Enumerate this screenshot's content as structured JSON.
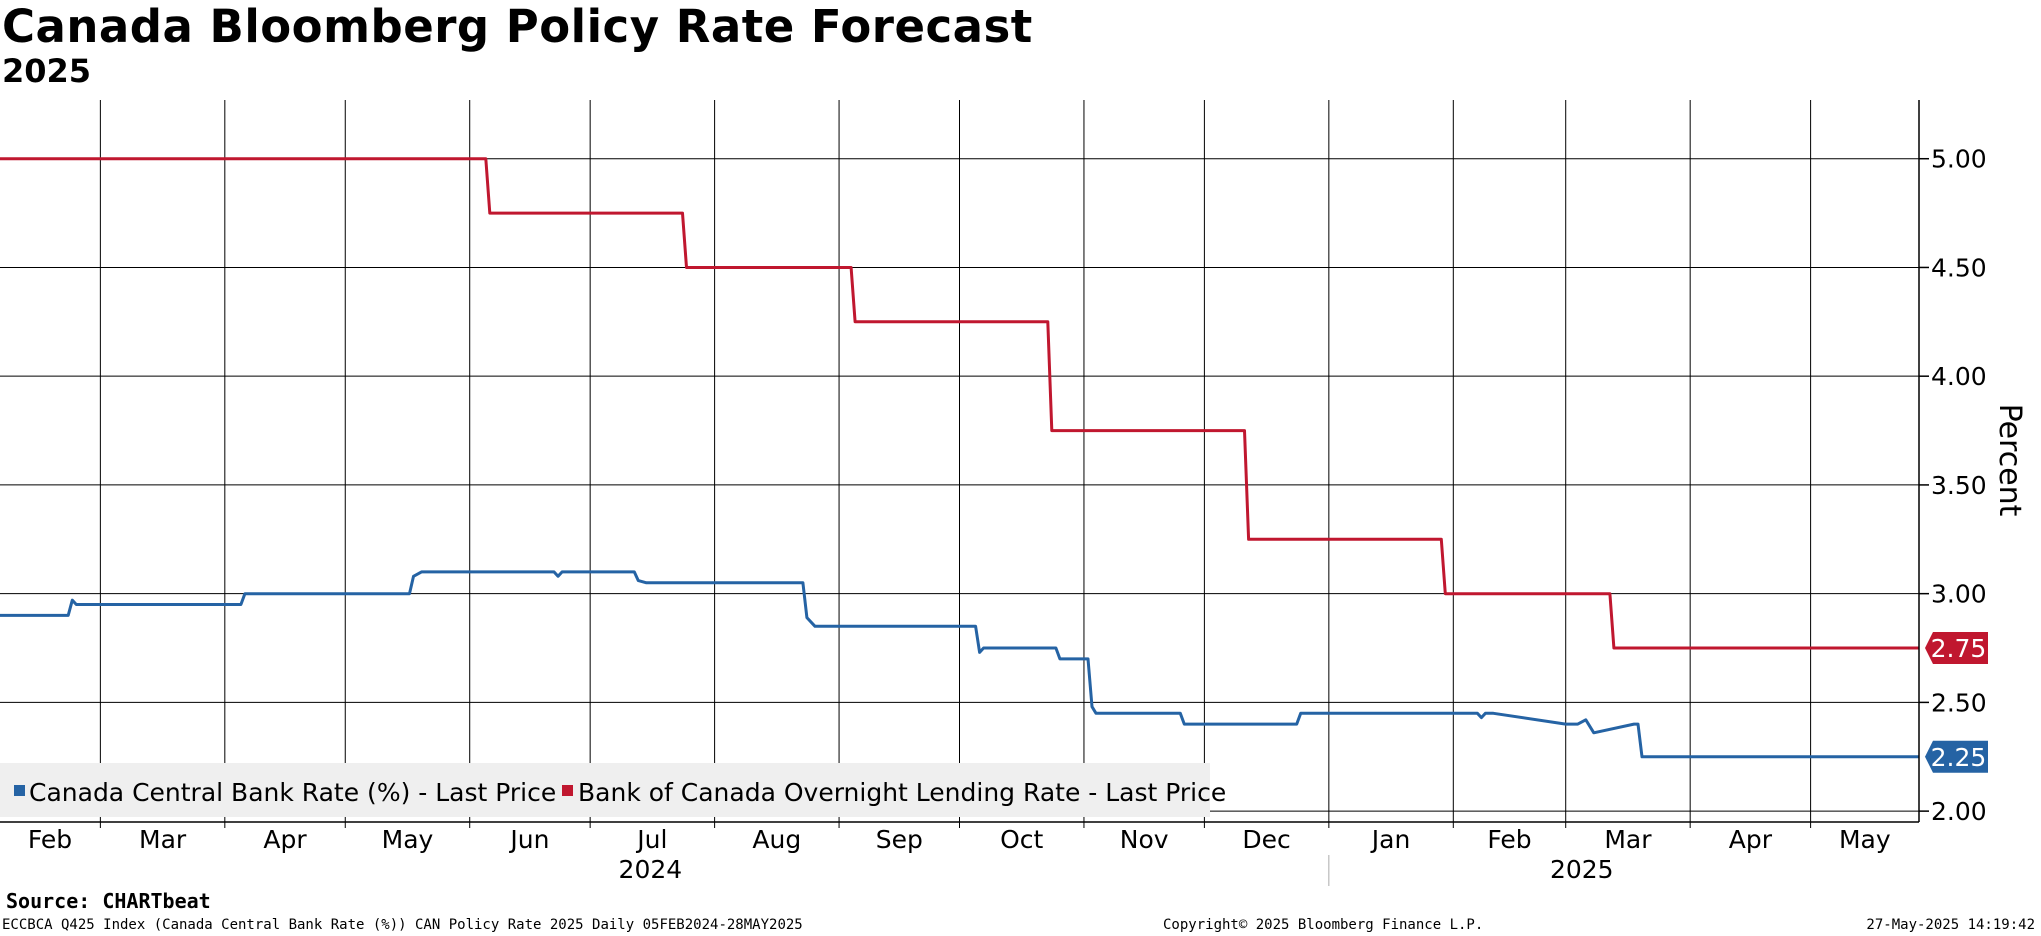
{
  "header": {
    "title": "Canada Bloomberg Policy Rate Forecast",
    "subtitle": "2025"
  },
  "footer": {
    "source": "Source: CHARTbeat",
    "meta": "ECCBCA Q425 Index (Canada Central Bank Rate (%)) CAN Policy Rate 2025  Daily 05FEB2024-28MAY2025",
    "copyright": "Copyright© 2025 Bloomberg Finance L.P.",
    "timestamp": "27-May-2025 14:19:42"
  },
  "colors": {
    "series_blue": "#2563a4",
    "series_red": "#c0172f",
    "grid": "#000000",
    "legend_bg": "#efefef"
  },
  "chart_data": {
    "type": "line",
    "title": "Canada Bloomberg Policy Rate Forecast",
    "subtitle": "2025",
    "xlabel": "",
    "ylabel": "Percent",
    "x_range": [
      "2024-02-05",
      "2025-05-28"
    ],
    "ylim": [
      1.95,
      5.27
    ],
    "yticks": [
      2.0,
      2.5,
      3.0,
      3.5,
      4.0,
      4.5,
      5.0
    ],
    "ytick_labels": [
      "2.00",
      "2.50",
      "3.00",
      "3.50",
      "4.00",
      "4.50",
      "5.00"
    ],
    "grid": true,
    "legend_position": "bottom-left",
    "month_ticks": [
      {
        "label": "Feb",
        "date": "2024-02-01"
      },
      {
        "label": "Mar",
        "date": "2024-03-01"
      },
      {
        "label": "Apr",
        "date": "2024-04-01"
      },
      {
        "label": "May",
        "date": "2024-05-01"
      },
      {
        "label": "Jun",
        "date": "2024-06-01"
      },
      {
        "label": "Jul",
        "date": "2024-07-01"
      },
      {
        "label": "Aug",
        "date": "2024-08-01"
      },
      {
        "label": "Sep",
        "date": "2024-09-01"
      },
      {
        "label": "Oct",
        "date": "2024-10-01"
      },
      {
        "label": "Nov",
        "date": "2024-11-01"
      },
      {
        "label": "Dec",
        "date": "2024-12-01"
      },
      {
        "label": "Jan",
        "date": "2025-01-01"
      },
      {
        "label": "Feb",
        "date": "2025-02-01"
      },
      {
        "label": "Mar",
        "date": "2025-03-01"
      },
      {
        "label": "Apr",
        "date": "2025-04-01"
      },
      {
        "label": "May",
        "date": "2025-05-01"
      }
    ],
    "year_labels": [
      {
        "label": "2024",
        "date": "2024-07-16"
      },
      {
        "label": "2025",
        "date": "2025-03-05"
      }
    ],
    "year_separator_date": "2025-01-01",
    "series": [
      {
        "name": "Canada Central Bank Rate (%) - Last Price",
        "color": "#2563a4",
        "last_value_label": "2.25",
        "x": [
          "2024-02-05",
          "2024-02-22",
          "2024-02-23",
          "2024-02-24",
          "2024-04-05",
          "2024-04-06",
          "2024-05-17",
          "2024-05-18",
          "2024-05-20",
          "2024-06-22",
          "2024-06-23",
          "2024-06-24",
          "2024-07-12",
          "2024-07-13",
          "2024-07-15",
          "2024-08-23",
          "2024-08-24",
          "2024-08-26",
          "2024-10-05",
          "2024-10-06",
          "2024-10-07",
          "2024-10-25",
          "2024-10-26",
          "2024-11-02",
          "2024-11-03",
          "2024-11-04",
          "2024-11-25",
          "2024-11-26",
          "2024-12-24",
          "2024-12-25",
          "2024-12-27",
          "2025-02-07",
          "2025-02-08",
          "2025-02-09",
          "2025-02-11",
          "2025-03-01",
          "2025-03-04",
          "2025-03-06",
          "2025-03-08",
          "2025-03-18",
          "2025-03-19",
          "2025-03-20",
          "2025-05-27",
          "2025-05-28"
        ],
        "y": [
          2.9,
          2.9,
          2.97,
          2.95,
          2.95,
          3.0,
          3.0,
          3.08,
          3.1,
          3.1,
          3.08,
          3.1,
          3.1,
          3.06,
          3.05,
          3.05,
          2.89,
          2.85,
          2.85,
          2.73,
          2.75,
          2.75,
          2.7,
          2.7,
          2.48,
          2.45,
          2.45,
          2.4,
          2.4,
          2.45,
          2.45,
          2.45,
          2.43,
          2.45,
          2.45,
          2.4,
          2.4,
          2.42,
          2.36,
          2.4,
          2.4,
          2.25,
          2.25,
          2.25
        ]
      },
      {
        "name": "Bank of Canada Overnight Lending Rate - Last Price",
        "color": "#c0172f",
        "last_value_label": "2.75",
        "x": [
          "2024-02-05",
          "2024-06-05",
          "2024-06-06",
          "2024-07-24",
          "2024-07-25",
          "2024-09-04",
          "2024-09-05",
          "2024-10-23",
          "2024-10-24",
          "2024-12-11",
          "2024-12-12",
          "2025-01-29",
          "2025-01-30",
          "2025-03-12",
          "2025-03-13",
          "2025-05-28"
        ],
        "y": [
          5.0,
          5.0,
          4.75,
          4.75,
          4.5,
          4.5,
          4.25,
          4.25,
          3.75,
          3.75,
          3.25,
          3.25,
          3.0,
          3.0,
          2.75,
          2.75
        ]
      }
    ]
  }
}
